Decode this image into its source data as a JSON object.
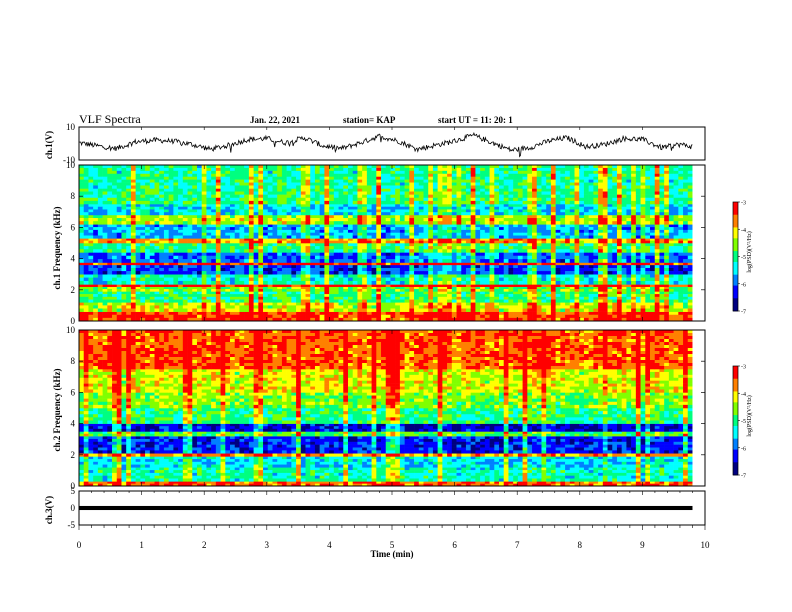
{
  "header": {
    "title": "VLF Spectra",
    "date": "Jan. 22, 2021",
    "station": "station= KAP",
    "start": "start UT =  11: 20: 1"
  },
  "colors": {
    "colormap": [
      "#000080",
      "#0000ff",
      "#0080ff",
      "#00ffff",
      "#00ff80",
      "#80ff00",
      "#ffff00",
      "#ff8000",
      "#ff0000",
      "#ffffff"
    ]
  },
  "chart_data": [
    {
      "type": "line",
      "panel": "ch1-waveform",
      "ylabel": "ch.1(V)",
      "ylim": [
        -10,
        10
      ],
      "yticks": [
        "10",
        "-10"
      ],
      "xlim": [
        0,
        10
      ],
      "x": [
        0,
        0.3,
        0.6,
        0.9,
        1.2,
        1.5,
        1.8,
        2.1,
        2.4,
        2.7,
        3.0,
        3.3,
        3.6,
        3.9,
        4.2,
        4.5,
        4.8,
        5.1,
        5.4,
        5.7,
        6.0,
        6.3,
        6.6,
        6.9,
        7.2,
        7.5,
        7.8,
        8.1,
        8.4,
        8.7,
        9.0,
        9.3,
        9.6,
        9.8
      ],
      "y": [
        0.5,
        -1.5,
        -3.0,
        1.0,
        2.0,
        1.5,
        -0.5,
        -3.5,
        -1.0,
        2.5,
        3.0,
        0.5,
        3.5,
        -1.5,
        -3.0,
        0.5,
        4.5,
        1.5,
        -3.5,
        -1.0,
        1.5,
        5.0,
        0.5,
        -4.0,
        -2.5,
        1.5,
        3.5,
        -2.0,
        -0.5,
        3.0,
        2.5,
        -2.5,
        -0.5,
        -2.0
      ]
    },
    {
      "type": "heatmap",
      "panel": "ch1-spectrogram",
      "ylabel": "ch.1 Frequency (kHz)",
      "ylim": [
        0,
        10
      ],
      "yticks": [
        "0",
        "2",
        "4",
        "6",
        "8",
        "10"
      ],
      "xlim": [
        0,
        9.8
      ],
      "colorbar_label": "log(PSD)(V²/Hz)",
      "colorbar_range": [
        -7,
        -3
      ],
      "colorbar_ticks": [
        "-3",
        "-4",
        "-5",
        "-6",
        "-7"
      ],
      "bands": [
        {
          "from": 0.0,
          "to": 0.6,
          "level": -3.4
        },
        {
          "from": 0.6,
          "to": 1.2,
          "level": -4.3
        },
        {
          "from": 1.2,
          "to": 1.9,
          "level": -5.0
        },
        {
          "from": 1.9,
          "to": 2.2,
          "level": -4.6
        },
        {
          "from": 2.2,
          "to": 2.35,
          "level": -3.2
        },
        {
          "from": 2.35,
          "to": 3.0,
          "level": -5.3
        },
        {
          "from": 3.0,
          "to": 3.6,
          "level": -6.2
        },
        {
          "from": 3.6,
          "to": 3.75,
          "level": -3.3
        },
        {
          "from": 3.75,
          "to": 4.4,
          "level": -6.0
        },
        {
          "from": 4.4,
          "to": 5.0,
          "level": -5.0
        },
        {
          "from": 5.0,
          "to": 5.3,
          "level": -3.8
        },
        {
          "from": 5.3,
          "to": 6.2,
          "level": -5.7
        },
        {
          "from": 6.2,
          "to": 6.8,
          "level": -4.4
        },
        {
          "from": 6.8,
          "to": 7.5,
          "level": -5.5
        },
        {
          "from": 7.5,
          "to": 8.5,
          "level": -5.0
        },
        {
          "from": 8.5,
          "to": 10.0,
          "level": -5.1
        }
      ]
    },
    {
      "type": "heatmap",
      "panel": "ch2-spectrogram",
      "ylabel": "ch.2 Frequency (kHz)",
      "ylim": [
        0,
        10
      ],
      "yticks": [
        "0",
        "2",
        "4",
        "6",
        "8",
        "10"
      ],
      "xlim": [
        0,
        9.8
      ],
      "colorbar_label": "log(PSD)(V²/Hz)",
      "colorbar_range": [
        -7,
        -3
      ],
      "colorbar_ticks": [
        "-3",
        "-4",
        "-5",
        "-6",
        "-7"
      ],
      "bands": [
        {
          "from": 0.0,
          "to": 0.3,
          "level": -3.6
        },
        {
          "from": 0.3,
          "to": 1.2,
          "level": -5.2
        },
        {
          "from": 1.2,
          "to": 1.9,
          "level": -5.5
        },
        {
          "from": 1.9,
          "to": 2.1,
          "level": -3.8
        },
        {
          "from": 2.1,
          "to": 3.2,
          "level": -6.3
        },
        {
          "from": 3.2,
          "to": 3.5,
          "level": -4.8
        },
        {
          "from": 3.5,
          "to": 4.0,
          "level": -6.5
        },
        {
          "from": 4.0,
          "to": 5.0,
          "level": -5.0
        },
        {
          "from": 5.0,
          "to": 6.0,
          "level": -4.6
        },
        {
          "from": 6.0,
          "to": 7.5,
          "level": -4.2
        },
        {
          "from": 7.5,
          "to": 10.0,
          "level": -3.5
        }
      ]
    },
    {
      "type": "line",
      "panel": "ch3-waveform",
      "ylabel": "ch.3(V)",
      "ylim": [
        -5,
        5
      ],
      "yticks": [
        "5",
        "0",
        "-5"
      ],
      "xlim": [
        0,
        10
      ],
      "xlabel": "Time (min)",
      "xticks": [
        "0",
        "1",
        "2",
        "3",
        "4",
        "5",
        "6",
        "7",
        "8",
        "9",
        "10"
      ],
      "x": [
        0,
        9.8
      ],
      "y": [
        0,
        0
      ]
    }
  ]
}
